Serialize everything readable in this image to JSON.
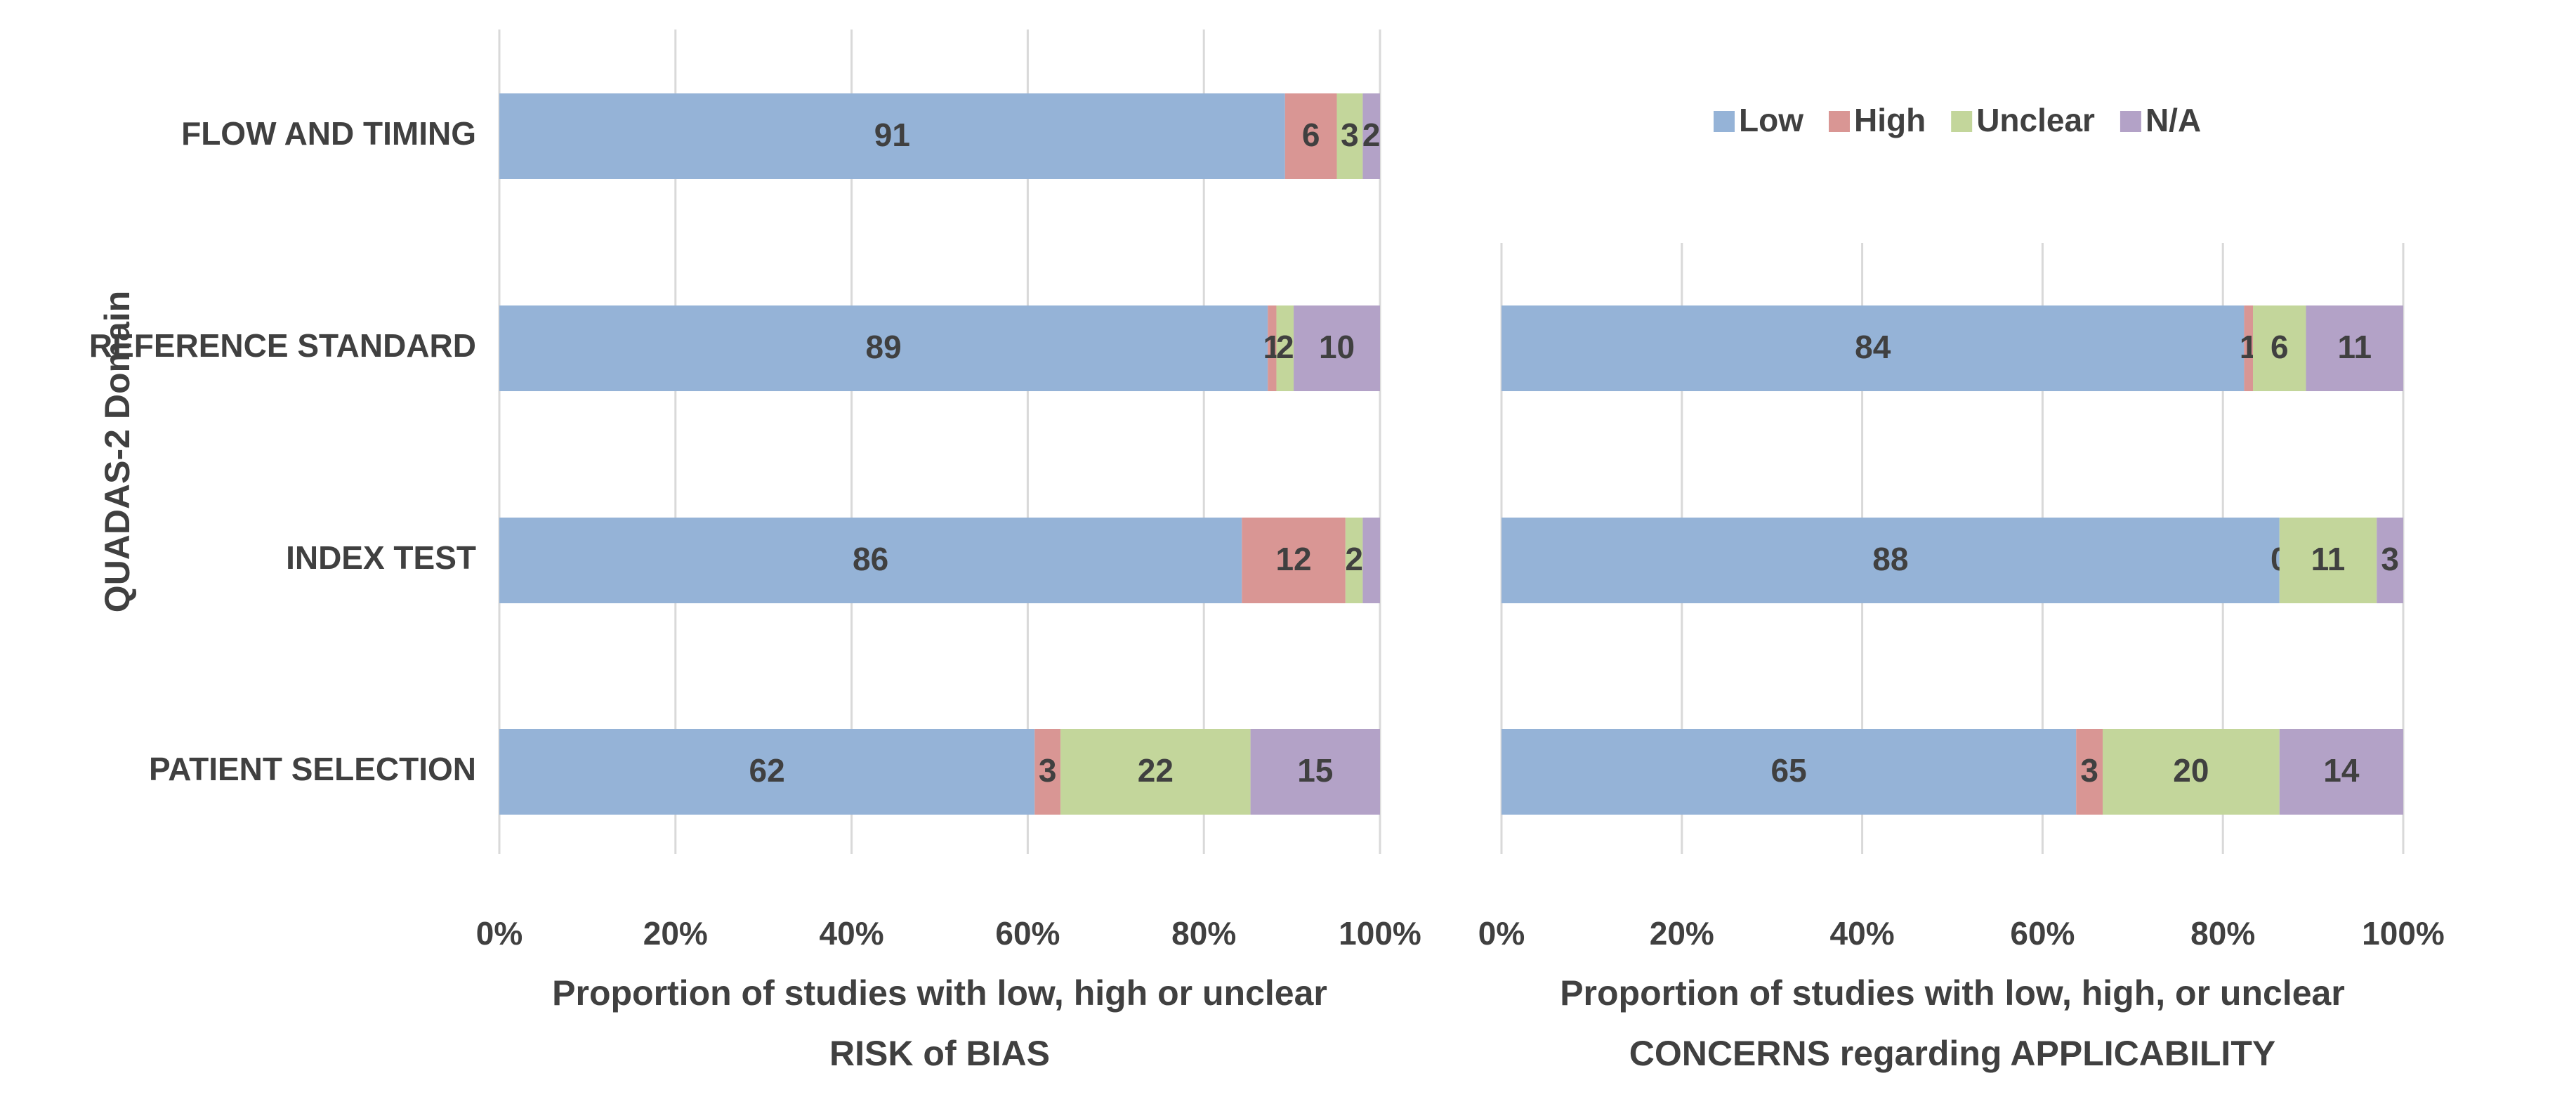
{
  "chart_data": [
    {
      "type": "bar",
      "orientation": "horizontal",
      "stacked": "percent",
      "ylabel": "QUADAS-2 Domain",
      "categories": [
        "FLOW AND TIMING",
        "REFERENCE STANDARD",
        "INDEX TEST",
        "PATIENT SELECTION"
      ],
      "series": [
        {
          "color": "#95b3d7",
          "values": [
            91,
            89,
            86,
            62
          ]
        },
        {
          "color": "#d99694",
          "values": [
            6,
            1,
            12,
            3
          ]
        },
        {
          "color": "#c3d69b",
          "values": [
            3,
            2,
            2,
            22
          ]
        },
        {
          "color": "#b3a2c7",
          "values": [
            2,
            10,
            2,
            15
          ],
          "value_labels": [
            "2",
            "10",
            null,
            "15"
          ]
        }
      ],
      "xlim": [
        0,
        100
      ],
      "xticks": [
        {
          "value": 0,
          "label": "0%"
        },
        {
          "value": 20,
          "label": "20%"
        },
        {
          "value": 40,
          "label": "40%"
        },
        {
          "value": 60,
          "label": "60%"
        },
        {
          "value": 80,
          "label": "80%"
        },
        {
          "value": 100,
          "label": "100%"
        }
      ],
      "xlabel": [
        "Proportion of studies with low, high or unclear",
        "RISK of BIAS"
      ],
      "grid": true
    },
    {
      "type": "bar",
      "orientation": "horizontal",
      "stacked": "percent",
      "series": [
        {
          "name": "Low",
          "color": "#95b3d7",
          "values": [
            null,
            84,
            88,
            65
          ]
        },
        {
          "name": "High",
          "color": "#d99694",
          "values": [
            null,
            1,
            0,
            3
          ]
        },
        {
          "name": "Unclear",
          "color": "#c3d69b",
          "values": [
            null,
            6,
            11,
            20
          ]
        },
        {
          "name": "N/A",
          "color": "#b3a2c7",
          "values": [
            null,
            11,
            3,
            14
          ]
        }
      ],
      "xlim": [
        0,
        100
      ],
      "xticks": [
        {
          "value": 0,
          "label": "0%"
        },
        {
          "value": 20,
          "label": "20%"
        },
        {
          "value": 40,
          "label": "40%"
        },
        {
          "value": 60,
          "label": "60%"
        },
        {
          "value": 80,
          "label": "80%"
        },
        {
          "value": 100,
          "label": "100%"
        }
      ],
      "xlabel": [
        "Proportion of studies with low, high, or unclear",
        "CONCERNS regarding APPLICABILITY"
      ],
      "legend": "top",
      "grid": true
    }
  ]
}
